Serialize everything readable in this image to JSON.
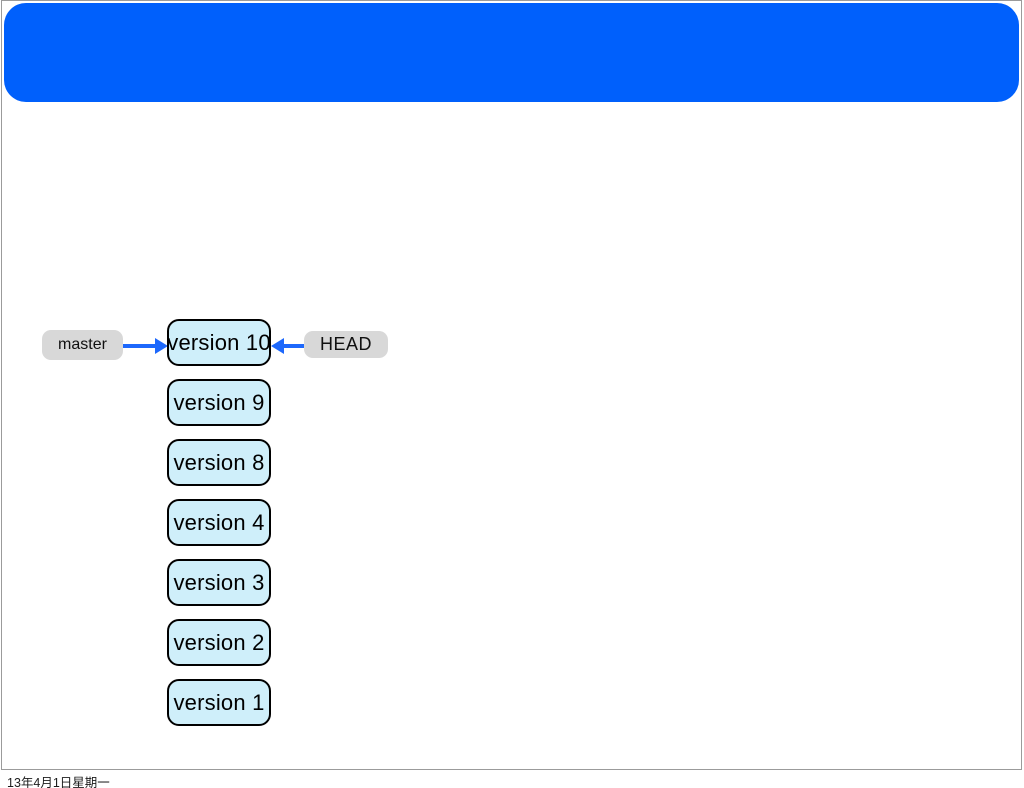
{
  "slide": {
    "header": {
      "accent_color": "#0060FC",
      "title": ""
    },
    "border_color": "#9B9B9B"
  },
  "diagram": {
    "master_label": "master",
    "head_label": "HEAD",
    "versions": [
      {
        "label": "version 10"
      },
      {
        "label": "version 9"
      },
      {
        "label": "version 8"
      },
      {
        "label": "version 4"
      },
      {
        "label": "version 3"
      },
      {
        "label": "version 2"
      },
      {
        "label": "version 1"
      }
    ],
    "colors": {
      "box_fill": "#CFEFFA",
      "box_border": "#000000",
      "tag_fill": "#D8D8D8",
      "arrow": "#1D68FC"
    }
  },
  "footer": {
    "date": "13年4月1日星期一"
  }
}
